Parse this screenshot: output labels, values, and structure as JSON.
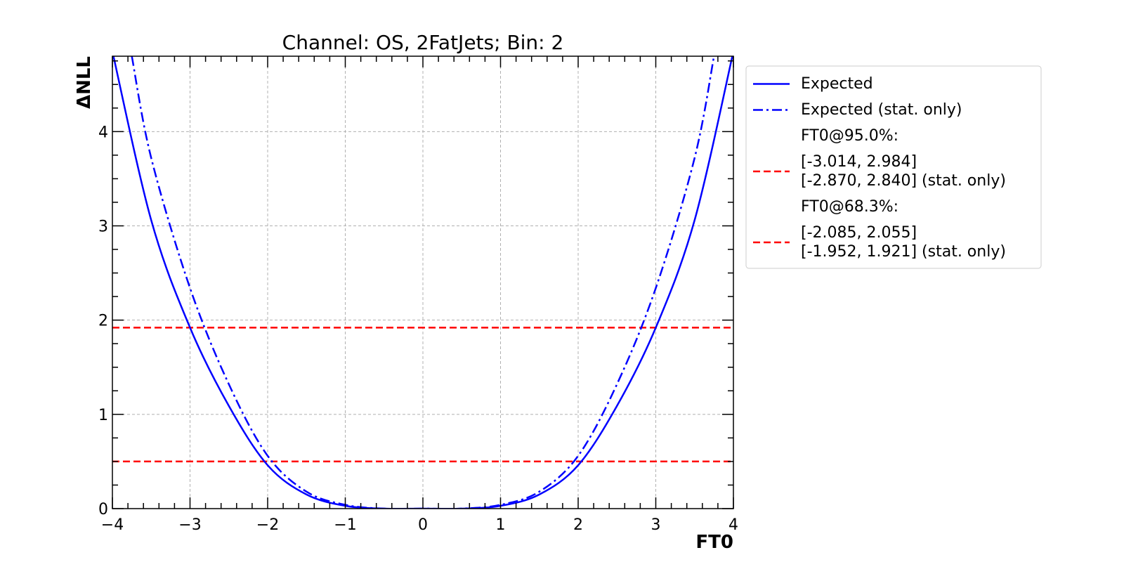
{
  "chart_data": {
    "type": "line",
    "title": "Channel: OS, 2FatJets; Bin: 2",
    "xlabel": "FT0",
    "ylabel": "ΔNLL",
    "xlim": [
      -4,
      4
    ],
    "ylim": [
      0,
      4.8
    ],
    "xticks": [
      -4,
      -3,
      -2,
      -1,
      0,
      1,
      2,
      3,
      4
    ],
    "xtick_labels": [
      "−4",
      "−3",
      "−2",
      "−1",
      "0",
      "1",
      "2",
      "3",
      "4"
    ],
    "yticks": [
      0,
      1,
      2,
      3,
      4
    ],
    "ytick_labels": [
      "0",
      "1",
      "2",
      "3",
      "4"
    ],
    "grid": true,
    "legend_position": "outside-right",
    "series": [
      {
        "name": "Expected",
        "style": "solid",
        "color": "#0000ff",
        "x": [
          -4.0,
          -3.5,
          -3.0,
          -2.5,
          -2.0,
          -1.5,
          -1.0,
          -0.5,
          0.0,
          0.5,
          1.0,
          1.5,
          2.0,
          2.5,
          3.0,
          3.5,
          4.0
        ],
        "y": [
          4.85,
          3.06,
          1.92,
          1.09,
          0.46,
          0.15,
          0.03,
          0.0,
          0.0,
          0.0,
          0.03,
          0.15,
          0.46,
          1.09,
          1.92,
          3.06,
          4.85
        ]
      },
      {
        "name": "Expected (stat. only)",
        "style": "dashdot",
        "color": "#0000ff",
        "x": [
          -3.75,
          -3.5,
          -3.0,
          -2.5,
          -2.0,
          -1.5,
          -1.0,
          -0.5,
          0.0,
          0.5,
          1.0,
          1.5,
          2.0,
          2.5,
          3.0,
          3.5,
          3.75
        ],
        "y": [
          4.8,
          3.72,
          2.34,
          1.32,
          0.56,
          0.18,
          0.04,
          0.0,
          0.0,
          0.0,
          0.04,
          0.18,
          0.56,
          1.32,
          2.34,
          3.72,
          4.8
        ]
      }
    ],
    "hlines": [
      {
        "y": 1.92,
        "style": "dashed",
        "color": "#ff0000"
      },
      {
        "y": 0.5,
        "style": "dashed",
        "color": "#ff0000"
      }
    ],
    "legend": [
      {
        "style": "solid",
        "color": "#0000ff",
        "lines": [
          "Expected"
        ]
      },
      {
        "style": "dashdot",
        "color": "#0000ff",
        "lines": [
          "Expected (stat. only)"
        ]
      },
      {
        "style": "none",
        "color": "",
        "lines": [
          "FT0@95.0%:"
        ]
      },
      {
        "style": "dashed",
        "color": "#ff0000",
        "lines": [
          "[-3.014, 2.984]",
          "[-2.870, 2.840] (stat. only)"
        ]
      },
      {
        "style": "none",
        "color": "",
        "lines": [
          "FT0@68.3%:"
        ]
      },
      {
        "style": "dashed",
        "color": "#ff0000",
        "lines": [
          "[-2.085, 2.055]",
          "[-1.952, 1.921] (stat. only)"
        ]
      }
    ]
  }
}
